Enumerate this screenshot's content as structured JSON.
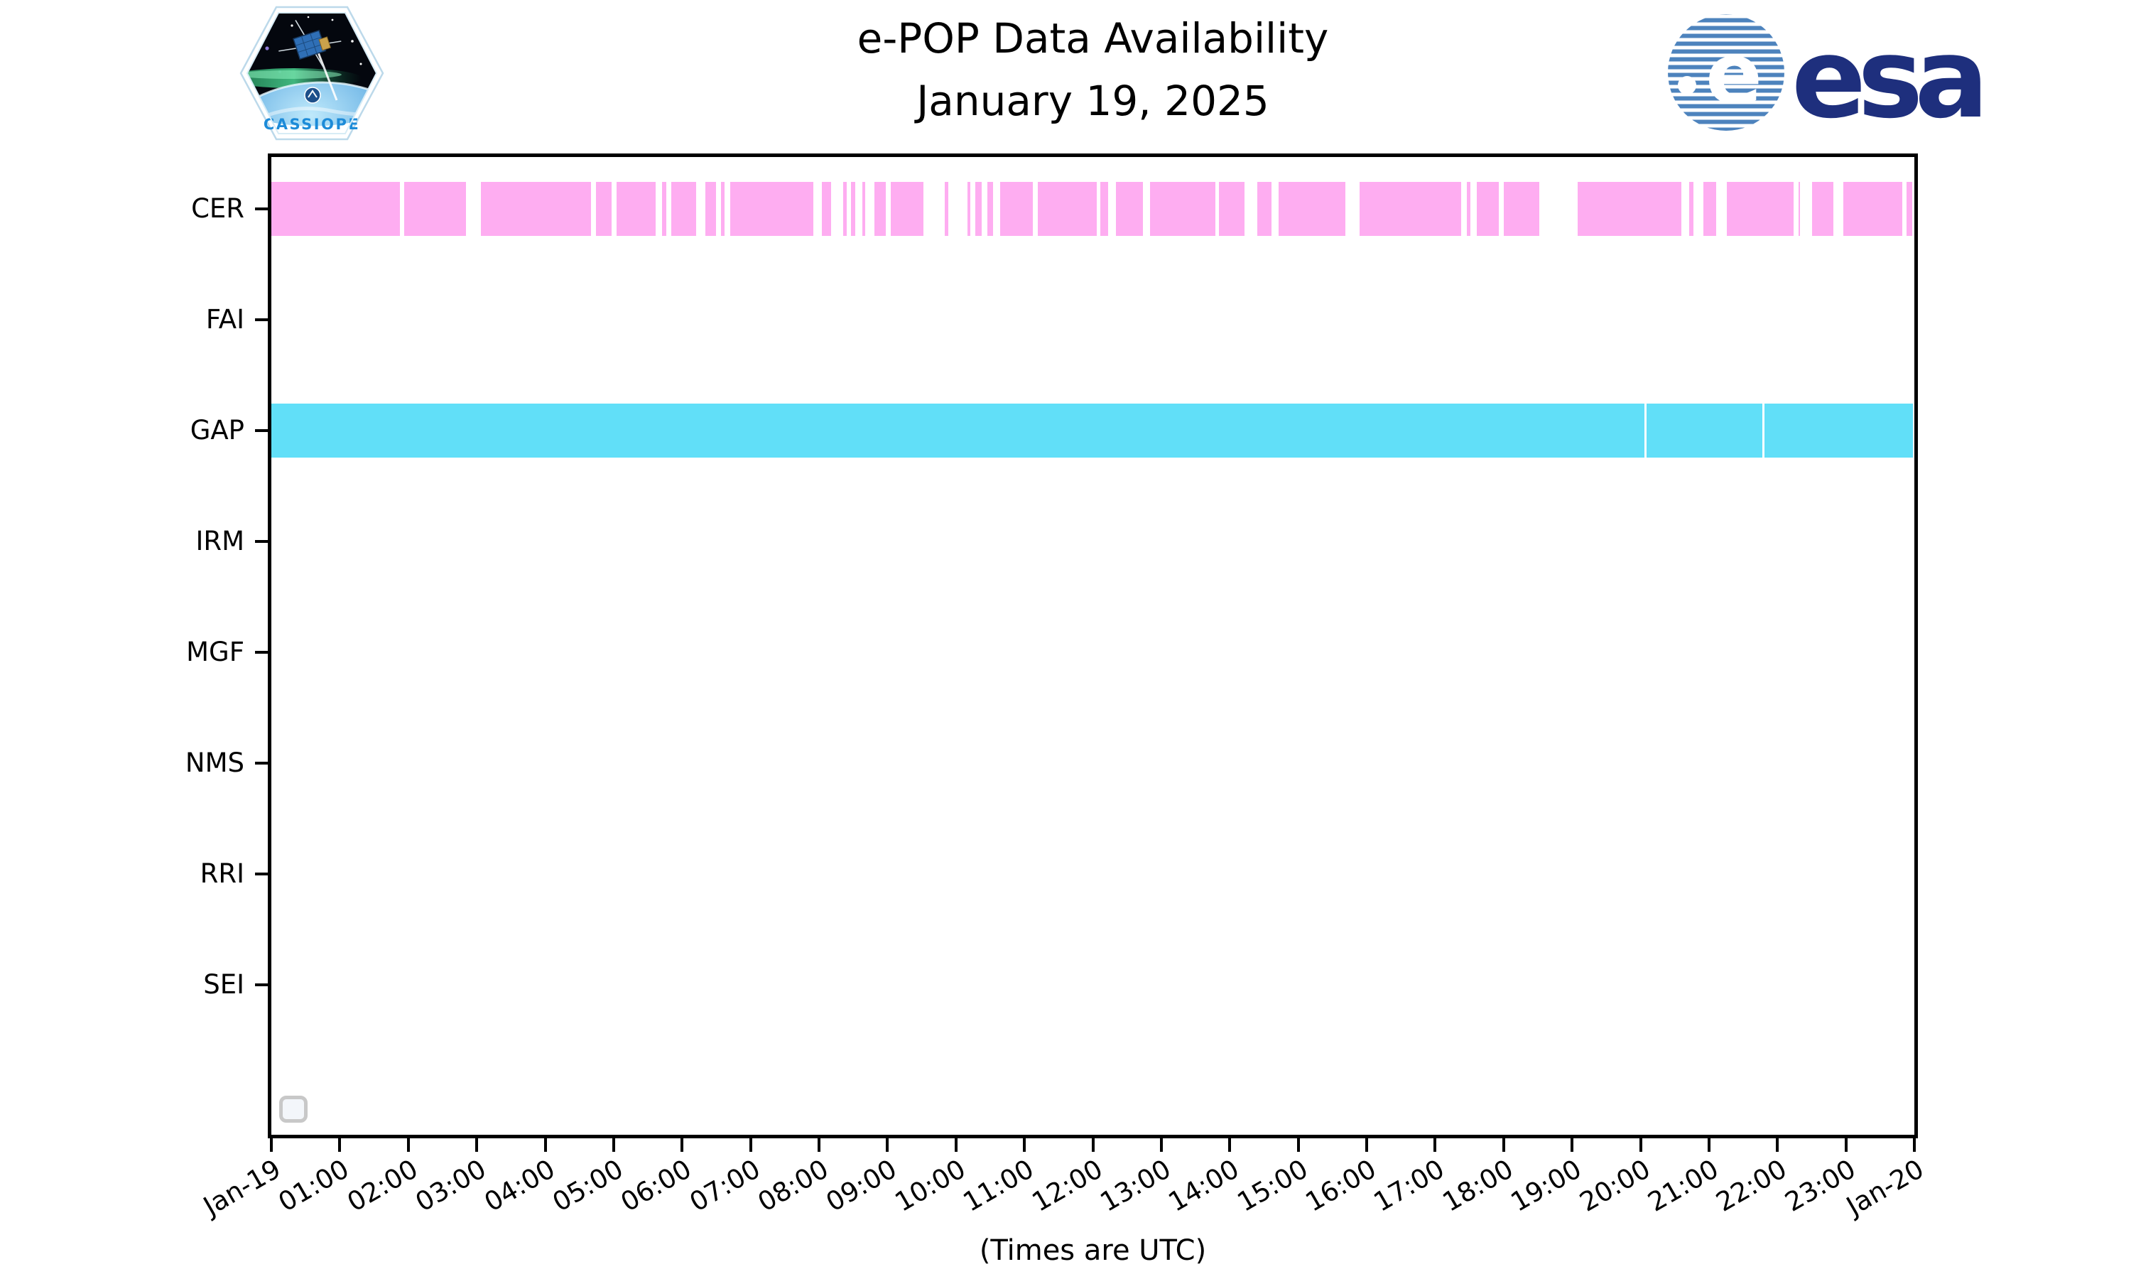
{
  "header": {
    "title_line1": "e-POP Data Availability",
    "title_line2": "January 19, 2025",
    "cassiope_label": "CASSIOPE",
    "esa_label": "esa"
  },
  "footer_note": "(Times are UTC)",
  "colors": {
    "cer_bar": "#feadf1",
    "gap_bar": "#61dff8",
    "axis": "#000000",
    "legend_border": "#c8c8c8",
    "esa_navy": "#1e2f7d",
    "esa_stripe_blue": "#4d83bd",
    "cassiope_text_blue": "#1d8bd8"
  },
  "chart_data": {
    "type": "timeline",
    "title": "e-POP Data Availability",
    "subtitle": "January 19, 2025",
    "xlabel": "(Times are UTC)",
    "xlim_hours": [
      0,
      24
    ],
    "grid": false,
    "x_tick_labels": [
      "Jan-19",
      "01:00",
      "02:00",
      "03:00",
      "04:00",
      "05:00",
      "06:00",
      "07:00",
      "08:00",
      "09:00",
      "10:00",
      "11:00",
      "12:00",
      "13:00",
      "14:00",
      "15:00",
      "16:00",
      "17:00",
      "18:00",
      "19:00",
      "20:00",
      "21:00",
      "22:00",
      "23:00",
      "Jan-20"
    ],
    "rows": [
      "CER",
      "FAI",
      "GAP",
      "IRM",
      "MGF",
      "NMS",
      "RRI",
      "SEI"
    ],
    "series": [
      {
        "row": "CER",
        "color": "#feadf1",
        "segments_hours": [
          [
            0.0,
            1.88
          ],
          [
            1.94,
            2.84
          ],
          [
            3.06,
            4.67
          ],
          [
            4.74,
            4.97
          ],
          [
            5.04,
            5.61
          ],
          [
            5.71,
            5.77
          ],
          [
            5.84,
            6.21
          ],
          [
            6.34,
            6.5
          ],
          [
            6.57,
            6.62
          ],
          [
            6.7,
            7.92
          ],
          [
            8.04,
            8.18
          ],
          [
            8.35,
            8.41
          ],
          [
            8.47,
            8.53
          ],
          [
            8.63,
            8.67
          ],
          [
            8.81,
            8.98
          ],
          [
            9.05,
            9.53
          ],
          [
            9.84,
            9.89
          ],
          [
            10.17,
            10.21
          ],
          [
            10.28,
            10.38
          ],
          [
            10.46,
            10.54
          ],
          [
            10.65,
            11.12
          ],
          [
            11.2,
            12.06
          ],
          [
            12.11,
            12.22
          ],
          [
            12.34,
            12.73
          ],
          [
            12.83,
            13.79
          ],
          [
            13.84,
            14.22
          ],
          [
            14.4,
            14.61
          ],
          [
            14.71,
            15.69
          ],
          [
            15.9,
            17.38
          ],
          [
            17.46,
            17.52
          ],
          [
            17.61,
            17.93
          ],
          [
            18.0,
            18.52
          ],
          [
            19.08,
            20.6
          ],
          [
            20.71,
            20.77
          ],
          [
            20.92,
            21.11
          ],
          [
            21.26,
            22.24
          ],
          [
            22.31,
            22.33
          ],
          [
            22.51,
            22.82
          ],
          [
            22.96,
            23.82
          ],
          [
            23.89,
            23.97
          ]
        ]
      },
      {
        "row": "GAP",
        "color": "#61dff8",
        "segments_hours": [
          [
            0.0,
            20.06
          ],
          [
            20.09,
            21.78
          ],
          [
            21.81,
            23.98
          ]
        ]
      }
    ]
  }
}
